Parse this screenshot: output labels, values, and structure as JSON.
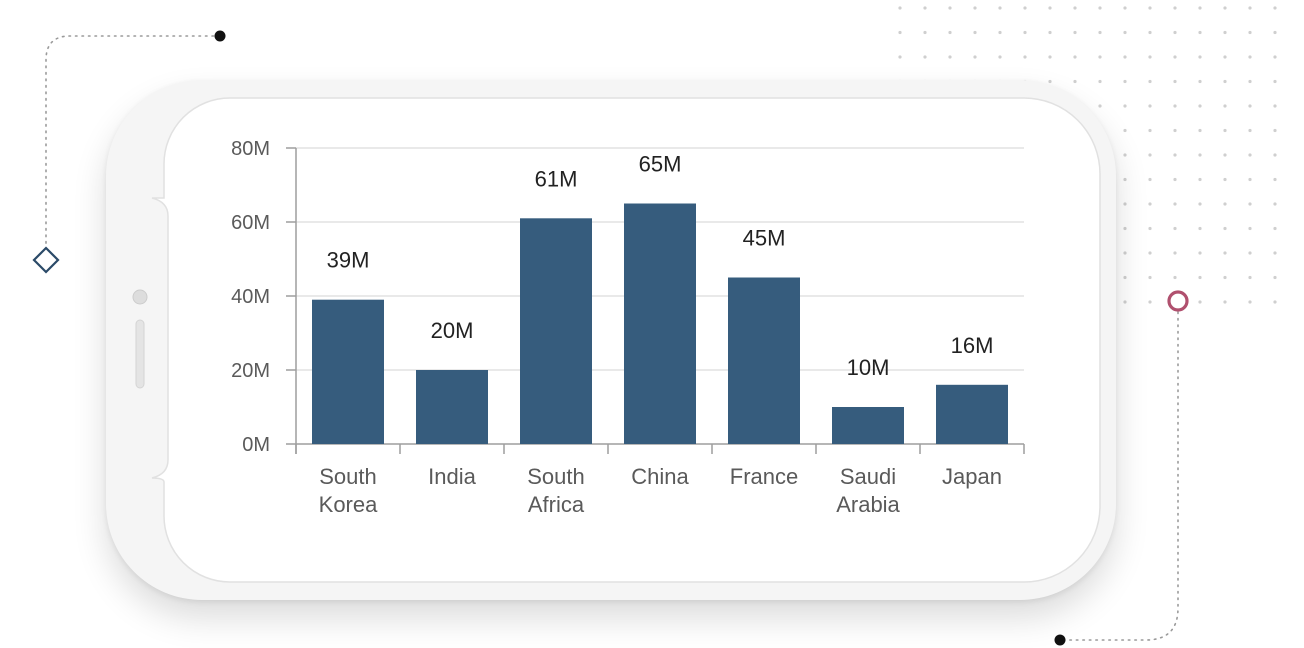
{
  "colors": {
    "bar": "#365c7d",
    "grid": "#dcdcdc",
    "axis": "#9e9e9e",
    "decor_dot": "#cfcfcf",
    "marker_ring": "#b0506e",
    "marker_diamond": "#2b4a68"
  },
  "chart_data": {
    "type": "bar",
    "categories": [
      "South Korea",
      "India",
      "South Africa",
      "China",
      "France",
      "Saudi Arabia",
      "Japan"
    ],
    "category_lines": [
      [
        "South",
        "Korea"
      ],
      [
        "India"
      ],
      [
        "South",
        "Africa"
      ],
      [
        "China"
      ],
      [
        "France"
      ],
      [
        "Saudi",
        "Arabia"
      ],
      [
        "Japan"
      ]
    ],
    "values": [
      39,
      20,
      61,
      65,
      45,
      10,
      16
    ],
    "value_labels": [
      "39M",
      "20M",
      "61M",
      "65M",
      "45M",
      "10M",
      "16M"
    ],
    "y_ticks": [
      0,
      20,
      40,
      60,
      80
    ],
    "y_tick_labels": [
      "0M",
      "20M",
      "40M",
      "60M",
      "80M"
    ],
    "ylim": [
      0,
      80
    ],
    "unit": "M",
    "title": "",
    "xlabel": "",
    "ylabel": "",
    "grid": true,
    "legend": "none"
  }
}
